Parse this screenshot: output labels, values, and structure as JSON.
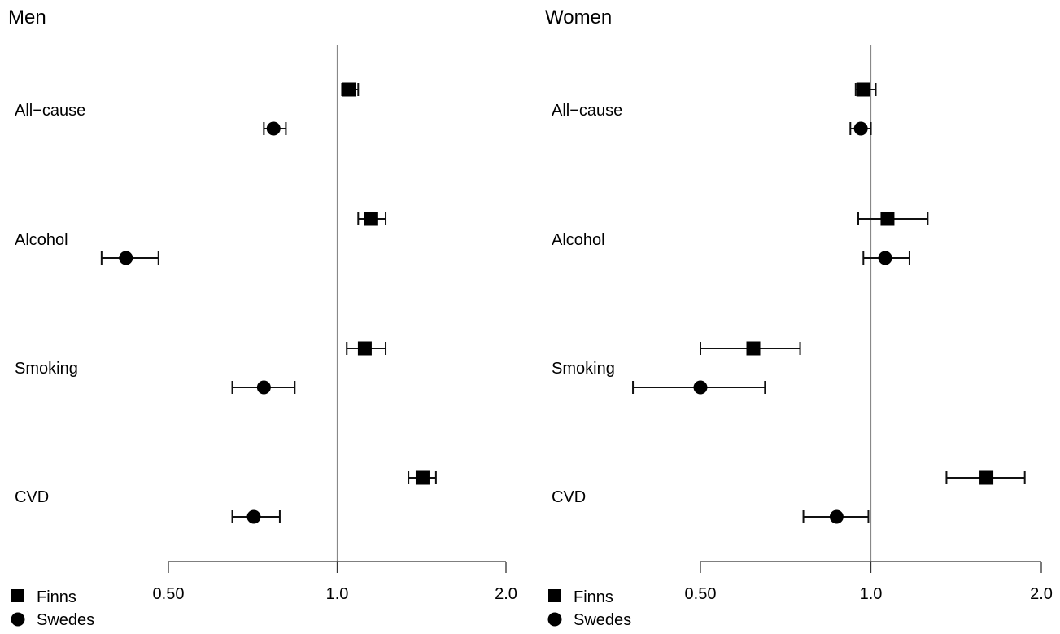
{
  "chart_data": [
    {
      "type": "scatter",
      "title": "Men",
      "x_scale": "log2",
      "xlim": [
        0.5,
        2.0
      ],
      "xticks": [
        "0.50",
        "1.0",
        "2.0"
      ],
      "reference_line": 1.0,
      "categories": [
        "All−cause",
        "Alcohol",
        "Smoking",
        "CVD"
      ],
      "legend": [
        "Finns",
        "Swedes"
      ],
      "legend_position": "bottom-left",
      "series": [
        {
          "name": "Finns",
          "marker": "square",
          "values": [
            1.05,
            1.15,
            1.12,
            1.42
          ],
          "ci_low": [
            1.02,
            1.09,
            1.04,
            1.34
          ],
          "ci_high": [
            1.09,
            1.22,
            1.22,
            1.5
          ]
        },
        {
          "name": "Swedes",
          "marker": "circle",
          "values": [
            0.77,
            0.42,
            0.74,
            0.71
          ],
          "ci_low": [
            0.74,
            0.38,
            0.65,
            0.65
          ],
          "ci_high": [
            0.81,
            0.48,
            0.84,
            0.79
          ]
        }
      ]
    },
    {
      "type": "scatter",
      "title": "Women",
      "x_scale": "log2",
      "xlim": [
        0.5,
        2.0
      ],
      "xticks": [
        "0.50",
        "1.0",
        "2.0"
      ],
      "reference_line": 1.0,
      "categories": [
        "All−cause",
        "Alcohol",
        "Smoking",
        "CVD"
      ],
      "legend": [
        "Finns",
        "Swedes"
      ],
      "legend_position": "bottom-left",
      "series": [
        {
          "name": "Finns",
          "marker": "square",
          "values": [
            0.97,
            1.07,
            0.62,
            1.6
          ],
          "ci_low": [
            0.94,
            0.95,
            0.5,
            1.36
          ],
          "ci_high": [
            1.02,
            1.26,
            0.75,
            1.87
          ]
        },
        {
          "name": "Swedes",
          "marker": "circle",
          "values": [
            0.96,
            1.06,
            0.5,
            0.87
          ],
          "ci_low": [
            0.92,
            0.97,
            0.38,
            0.76
          ],
          "ci_high": [
            1.0,
            1.17,
            0.65,
            0.99
          ]
        }
      ]
    }
  ]
}
